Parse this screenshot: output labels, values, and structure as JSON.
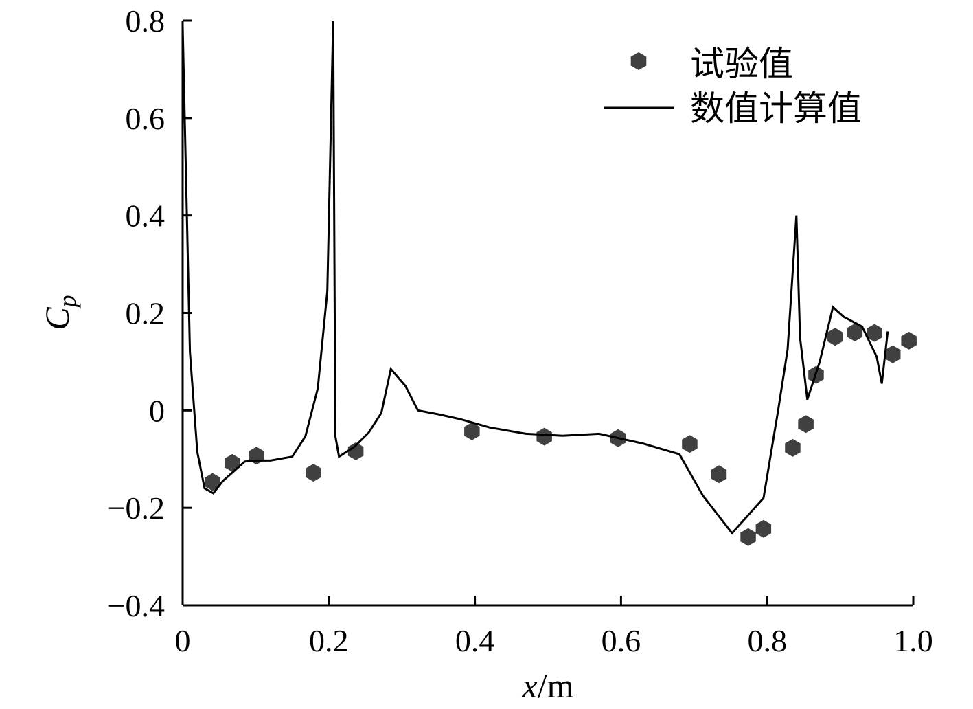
{
  "chart_data": {
    "type": "line",
    "title": "",
    "xlabel": {
      "var": "x",
      "unit": "/m"
    },
    "ylabel": {
      "var": "C",
      "sub": "p"
    },
    "xlim": [
      0,
      1.0
    ],
    "ylim": [
      -0.4,
      0.8
    ],
    "x_ticks": [
      {
        "value": 0,
        "label": "0"
      },
      {
        "value": 0.2,
        "label": "0.2"
      },
      {
        "value": 0.4,
        "label": "0.4"
      },
      {
        "value": 0.6,
        "label": "0.6"
      },
      {
        "value": 0.8,
        "label": "0.8"
      },
      {
        "value": 1.0,
        "label": "1.0"
      }
    ],
    "y_ticks": [
      {
        "value": 0.8,
        "label": "0.8"
      },
      {
        "value": 0.6,
        "label": "0.6"
      },
      {
        "value": 0.4,
        "label": "0.4"
      },
      {
        "value": 0.2,
        "label": "0.2"
      },
      {
        "value": 0,
        "label": "0"
      },
      {
        "value": -0.2,
        "label": "−0.2"
      },
      {
        "value": -0.4,
        "label": "−0.4"
      }
    ],
    "grid": false,
    "legend_position": "top-right",
    "series": [
      {
        "name": "试验值",
        "kind": "scatter",
        "marker": "hexagon",
        "color": "#404040",
        "points": [
          [
            0.041,
            -0.147
          ],
          [
            0.068,
            -0.108
          ],
          [
            0.101,
            -0.093
          ],
          [
            0.179,
            -0.128
          ],
          [
            0.237,
            -0.084
          ],
          [
            0.396,
            -0.043
          ],
          [
            0.495,
            -0.054
          ],
          [
            0.596,
            -0.057
          ],
          [
            0.694,
            -0.069
          ],
          [
            0.734,
            -0.131
          ],
          [
            0.774,
            -0.26
          ],
          [
            0.795,
            -0.243
          ],
          [
            0.835,
            -0.077
          ],
          [
            0.853,
            -0.028
          ],
          [
            0.867,
            0.073
          ],
          [
            0.893,
            0.151
          ],
          [
            0.92,
            0.16
          ],
          [
            0.947,
            0.159
          ],
          [
            0.972,
            0.115
          ],
          [
            0.994,
            0.143
          ]
        ]
      },
      {
        "name": "数值计算值",
        "kind": "line",
        "color": "#000000",
        "points": [
          [
            0.0,
            0.79
          ],
          [
            0.01,
            0.12
          ],
          [
            0.02,
            -0.085
          ],
          [
            0.03,
            -0.16
          ],
          [
            0.042,
            -0.17
          ],
          [
            0.055,
            -0.145
          ],
          [
            0.07,
            -0.125
          ],
          [
            0.085,
            -0.105
          ],
          [
            0.1,
            -0.103
          ],
          [
            0.12,
            -0.103
          ],
          [
            0.15,
            -0.095
          ],
          [
            0.168,
            -0.053
          ],
          [
            0.185,
            0.045
          ],
          [
            0.198,
            0.245
          ],
          [
            0.206,
            0.8
          ],
          [
            0.209,
            -0.053
          ],
          [
            0.214,
            -0.095
          ],
          [
            0.235,
            -0.075
          ],
          [
            0.255,
            -0.045
          ],
          [
            0.272,
            -0.005
          ],
          [
            0.285,
            0.085
          ],
          [
            0.305,
            0.05
          ],
          [
            0.322,
            0.0
          ],
          [
            0.35,
            -0.008
          ],
          [
            0.38,
            -0.018
          ],
          [
            0.42,
            -0.035
          ],
          [
            0.47,
            -0.048
          ],
          [
            0.52,
            -0.052
          ],
          [
            0.57,
            -0.048
          ],
          [
            0.63,
            -0.068
          ],
          [
            0.68,
            -0.09
          ],
          [
            0.712,
            -0.175
          ],
          [
            0.752,
            -0.252
          ],
          [
            0.795,
            -0.18
          ],
          [
            0.815,
            0.0
          ],
          [
            0.828,
            0.125
          ],
          [
            0.84,
            0.4
          ],
          [
            0.845,
            0.15
          ],
          [
            0.855,
            0.022
          ],
          [
            0.872,
            0.1
          ],
          [
            0.89,
            0.212
          ],
          [
            0.905,
            0.192
          ],
          [
            0.93,
            0.172
          ],
          [
            0.95,
            0.11
          ],
          [
            0.957,
            0.055
          ],
          [
            0.965,
            0.162
          ]
        ]
      }
    ]
  }
}
